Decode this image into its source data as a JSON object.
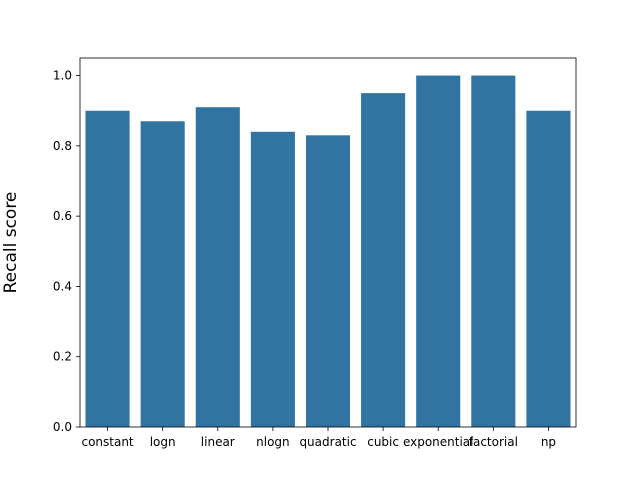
{
  "chart_data": {
    "type": "bar",
    "title": "",
    "xlabel": "",
    "ylabel": "Recall score",
    "categories": [
      "constant",
      "logn",
      "linear",
      "nlogn",
      "quadratic",
      "cubic",
      "exponential",
      "factorial",
      "np"
    ],
    "values": [
      0.9,
      0.87,
      0.91,
      0.84,
      0.83,
      0.95,
      1.0,
      1.0,
      0.9
    ],
    "ylim": [
      0,
      1.05
    ],
    "yticks": [
      0.0,
      0.2,
      0.4,
      0.6,
      0.8,
      1.0
    ],
    "ytick_labels": [
      "0.0",
      "0.2",
      "0.4",
      "0.6",
      "0.8",
      "1.0"
    ],
    "grid": false,
    "legend": "none",
    "bar_color": "#3274a1"
  }
}
